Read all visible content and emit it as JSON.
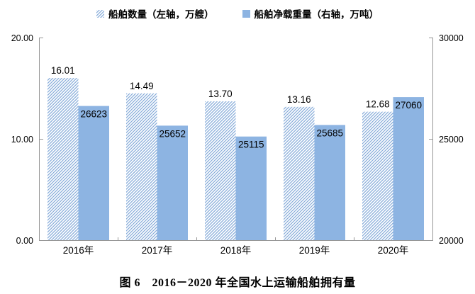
{
  "chart_data": {
    "type": "bar",
    "title": "",
    "categories": [
      "2016年",
      "2017年",
      "2018年",
      "2019年",
      "2020年"
    ],
    "category_keys": [
      "2016",
      "2017",
      "2018",
      "2019",
      "2020"
    ],
    "series": [
      {
        "name": "船舶数量（左轴，万艘）",
        "axis": "left",
        "style": "hatched",
        "values": [
          16.01,
          14.49,
          13.7,
          13.16,
          12.68
        ],
        "labels": [
          "16.01",
          "14.49",
          "13.70",
          "13.16",
          "12.68"
        ]
      },
      {
        "name": "船舶净载重量（右轴，万吨）",
        "axis": "right",
        "style": "solid",
        "values": [
          26623,
          25652,
          25115,
          25685,
          27060
        ],
        "labels": [
          "26623",
          "25652",
          "25115",
          "25685",
          "27060"
        ]
      }
    ],
    "left_axis": {
      "min": 0,
      "max": 20,
      "tick_values": [
        0,
        10,
        20
      ],
      "tick_labels": [
        "0.00",
        "10.00",
        "20.00"
      ]
    },
    "right_axis": {
      "min": 20000,
      "max": 30000,
      "tick_values": [
        20000,
        25000,
        30000
      ],
      "tick_labels": [
        "20000",
        "25000",
        "30000"
      ]
    },
    "legend_position": "top",
    "grid": false,
    "colors": {
      "bar_fill": "#8db4e2",
      "hatch_line": "#7aa3d6",
      "axis_line": "#969696",
      "label_text": "#000000"
    }
  },
  "caption": "图 6　2016－2020 年全国水上运输船舶拥有量"
}
